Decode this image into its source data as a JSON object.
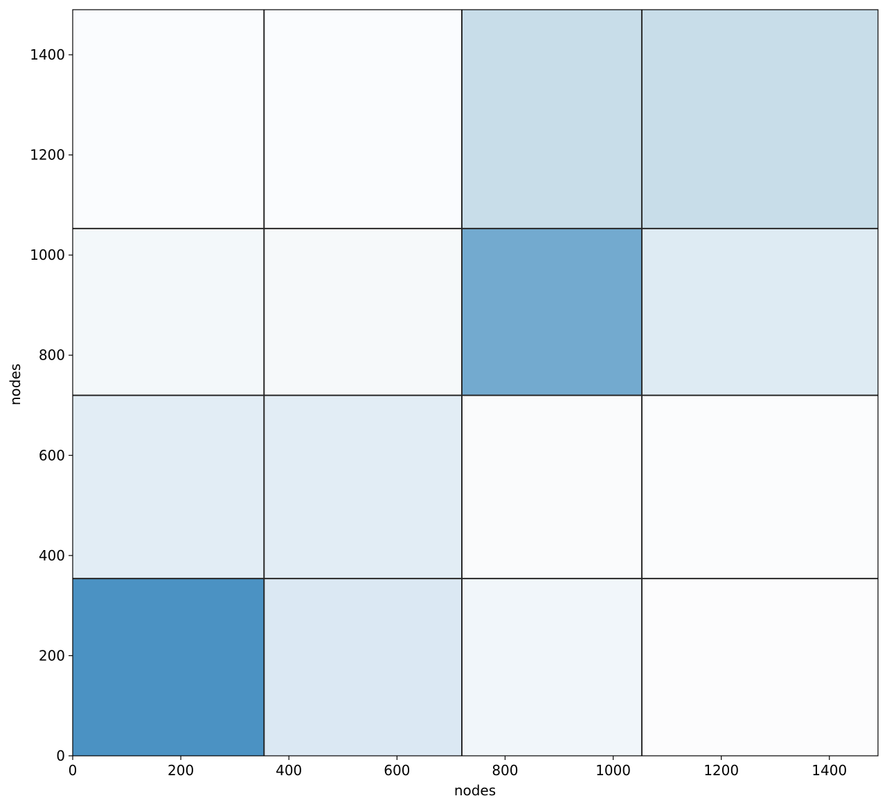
{
  "chart_data": {
    "type": "heatmap",
    "title": "",
    "xlabel": "nodes",
    "ylabel": "nodes",
    "xlim": [
      0,
      1490
    ],
    "ylim": [
      0,
      1490
    ],
    "xticks": [
      0,
      200,
      400,
      600,
      800,
      1000,
      1200,
      1400
    ],
    "yticks": [
      0,
      200,
      400,
      600,
      800,
      1000,
      1200,
      1400
    ],
    "xtick_labels": [
      "0",
      "200",
      "400",
      "600",
      "800",
      "1000",
      "1200",
      "1400"
    ],
    "ytick_labels": [
      "0",
      "200",
      "400",
      "600",
      "800",
      "1000",
      "1200",
      "1400"
    ],
    "block_boundaries": [
      0,
      354,
      720,
      1053,
      1490
    ],
    "colormap": "Blues",
    "cells": [
      {
        "row": 0,
        "col": 0,
        "y": [
          0,
          354
        ],
        "x": [
          0,
          354
        ],
        "color": "#4b92c3"
      },
      {
        "row": 0,
        "col": 1,
        "y": [
          0,
          354
        ],
        "x": [
          354,
          720
        ],
        "color": "#dbe8f3"
      },
      {
        "row": 0,
        "col": 2,
        "y": [
          0,
          354
        ],
        "x": [
          720,
          1053
        ],
        "color": "#f1f6fa"
      },
      {
        "row": 0,
        "col": 3,
        "y": [
          0,
          354
        ],
        "x": [
          1053,
          1490
        ],
        "color": "#fcfcfd"
      },
      {
        "row": 1,
        "col": 0,
        "y": [
          354,
          720
        ],
        "x": [
          0,
          354
        ],
        "color": "#e2edf5"
      },
      {
        "row": 1,
        "col": 1,
        "y": [
          354,
          720
        ],
        "x": [
          354,
          720
        ],
        "color": "#e2edf5"
      },
      {
        "row": 1,
        "col": 2,
        "y": [
          354,
          720
        ],
        "x": [
          720,
          1053
        ],
        "color": "#fafbfc"
      },
      {
        "row": 1,
        "col": 3,
        "y": [
          354,
          720
        ],
        "x": [
          1053,
          1490
        ],
        "color": "#fbfcfd"
      },
      {
        "row": 2,
        "col": 0,
        "y": [
          720,
          1053
        ],
        "x": [
          0,
          354
        ],
        "color": "#f3f8fa"
      },
      {
        "row": 2,
        "col": 1,
        "y": [
          720,
          1053
        ],
        "x": [
          354,
          720
        ],
        "color": "#f6f9fa"
      },
      {
        "row": 2,
        "col": 2,
        "y": [
          720,
          1053
        ],
        "x": [
          720,
          1053
        ],
        "color": "#73aacf"
      },
      {
        "row": 2,
        "col": 3,
        "y": [
          720,
          1053
        ],
        "x": [
          1053,
          1490
        ],
        "color": "#deebf3"
      },
      {
        "row": 3,
        "col": 0,
        "y": [
          1053,
          1490
        ],
        "x": [
          0,
          354
        ],
        "color": "#fafcfe"
      },
      {
        "row": 3,
        "col": 1,
        "y": [
          1053,
          1490
        ],
        "x": [
          354,
          720
        ],
        "color": "#fafcfe"
      },
      {
        "row": 3,
        "col": 2,
        "y": [
          1053,
          1490
        ],
        "x": [
          720,
          1053
        ],
        "color": "#c8dde9"
      },
      {
        "row": 3,
        "col": 3,
        "y": [
          1053,
          1490
        ],
        "x": [
          1053,
          1490
        ],
        "color": "#c8dde9"
      }
    ]
  }
}
